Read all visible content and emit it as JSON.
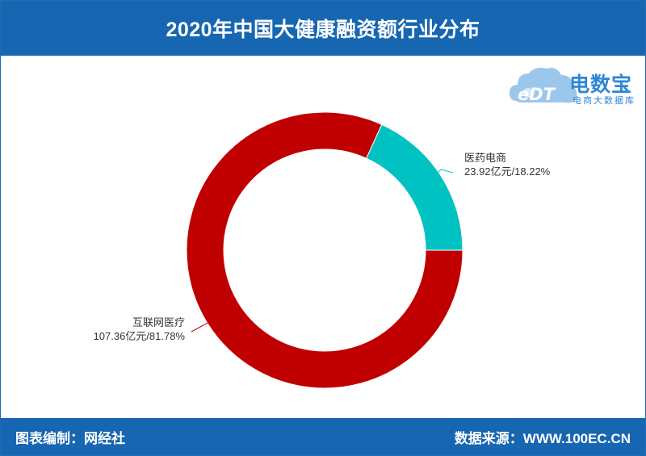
{
  "header": {
    "title": "2020年中国大健康融资额行业分布"
  },
  "logo": {
    "text": "电数宝",
    "subtitle": "电商大数据库",
    "mark": "eDT"
  },
  "footer": {
    "left": "图表编制：网经社",
    "right": "数据来源：WWW.100EC.CN"
  },
  "chart_data": {
    "type": "pie",
    "title": "2020年中国大健康融资额行业分布",
    "donut": true,
    "slices": [
      {
        "name": "医药电商",
        "label": "23.92亿元/18.22%",
        "value": 23.92,
        "percent": 18.22,
        "color": "#00c2c2"
      },
      {
        "name": "互联网医疗",
        "label": "107.36亿元/81.78%",
        "value": 107.36,
        "percent": 81.78,
        "color": "#c00000"
      }
    ]
  }
}
